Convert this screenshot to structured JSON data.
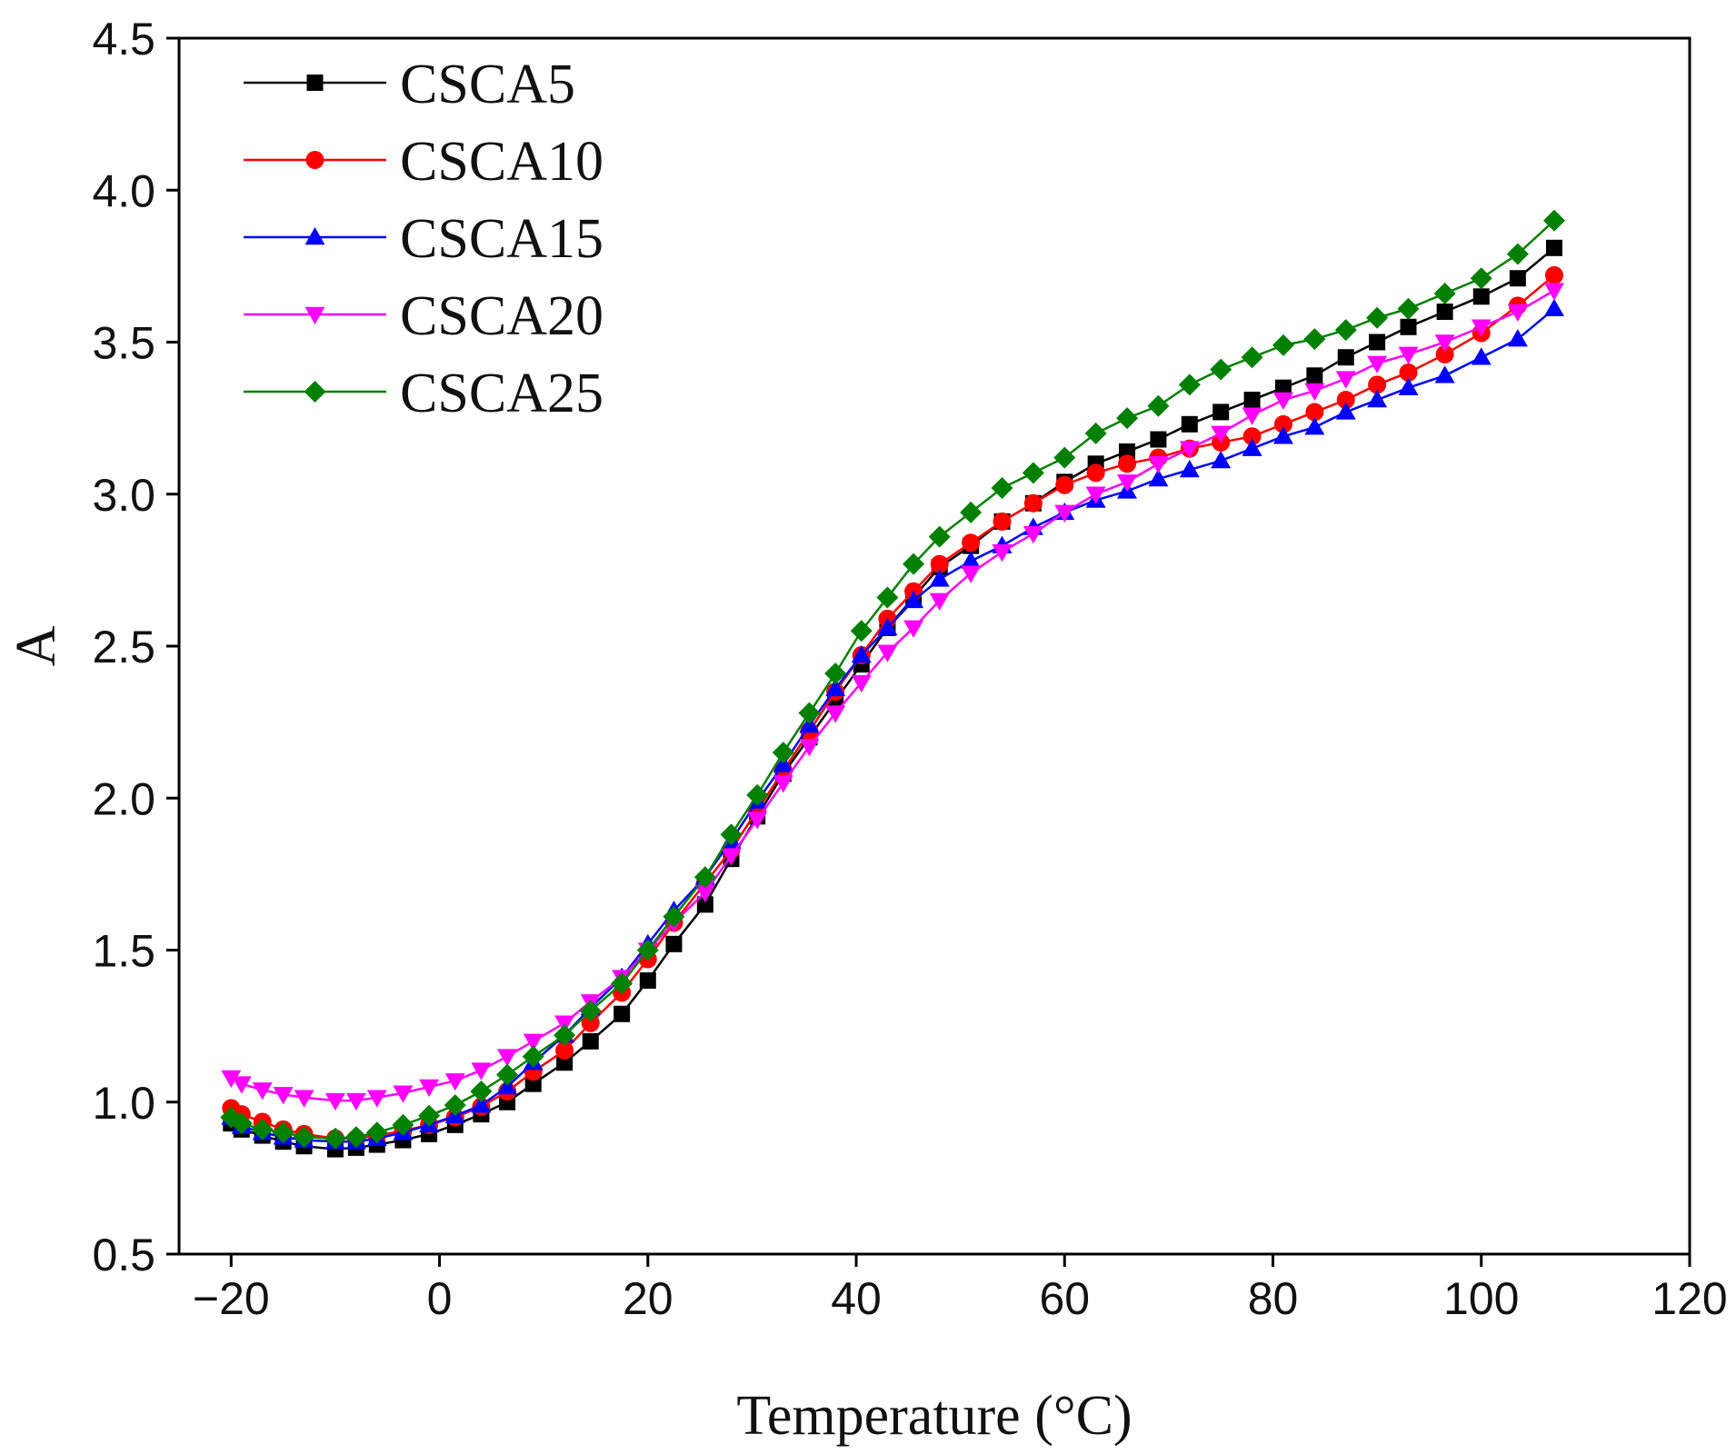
{
  "chart_data": {
    "type": "line",
    "title": "",
    "xlabel": "Temperature (°C)",
    "ylabel": "A",
    "xlim": [
      -25,
      120
    ],
    "ylim": [
      0.5,
      4.5
    ],
    "xticks": [
      -20,
      0,
      20,
      40,
      60,
      80,
      100,
      120
    ],
    "yticks": [
      0.5,
      1.0,
      1.5,
      2.0,
      2.5,
      3.0,
      3.5,
      4.0,
      4.5
    ],
    "xtick_labels": [
      "−20",
      "0",
      "20",
      "40",
      "60",
      "80",
      "100",
      "120"
    ],
    "ytick_labels": [
      "0.5",
      "1.0",
      "1.5",
      "2.0",
      "2.5",
      "3.0",
      "3.5",
      "4.0",
      "4.5"
    ],
    "legend_position": "top-left",
    "x": [
      -20,
      -19,
      -17,
      -15,
      -13,
      -10,
      -8,
      -6,
      -3.5,
      -1,
      1.5,
      4,
      6.5,
      9,
      12,
      14.5,
      17.5,
      20,
      22.5,
      25.5,
      28,
      30.5,
      33,
      35.5,
      38,
      40.5,
      43,
      45.5,
      48,
      51,
      54,
      57,
      60,
      63,
      66,
      69,
      72,
      75,
      78,
      81,
      84,
      87,
      90,
      93,
      96.5,
      100,
      103.5,
      107
    ],
    "series": [
      {
        "name": "CSCA5",
        "color": "#000000",
        "marker": "square",
        "values": [
          0.93,
          0.91,
          0.89,
          0.87,
          0.855,
          0.845,
          0.85,
          0.86,
          0.875,
          0.895,
          0.925,
          0.96,
          1.0,
          1.06,
          1.13,
          1.2,
          1.29,
          1.4,
          1.52,
          1.65,
          1.8,
          1.94,
          2.08,
          2.2,
          2.32,
          2.44,
          2.56,
          2.66,
          2.76,
          2.83,
          2.91,
          2.97,
          3.04,
          3.1,
          3.14,
          3.18,
          3.23,
          3.27,
          3.31,
          3.35,
          3.39,
          3.45,
          3.5,
          3.55,
          3.6,
          3.65,
          3.71,
          3.81
        ]
      },
      {
        "name": "CSCA10",
        "color": "#ff0000",
        "marker": "circle",
        "values": [
          0.98,
          0.96,
          0.935,
          0.91,
          0.895,
          0.88,
          0.88,
          0.89,
          0.905,
          0.925,
          0.95,
          0.985,
          1.035,
          1.1,
          1.17,
          1.26,
          1.36,
          1.47,
          1.59,
          1.72,
          1.83,
          1.96,
          2.09,
          2.22,
          2.35,
          2.47,
          2.59,
          2.68,
          2.77,
          2.84,
          2.91,
          2.97,
          3.03,
          3.07,
          3.1,
          3.12,
          3.15,
          3.17,
          3.19,
          3.23,
          3.27,
          3.31,
          3.36,
          3.4,
          3.46,
          3.53,
          3.62,
          3.72
        ]
      },
      {
        "name": "CSCA15",
        "color": "#0000ff",
        "marker": "triangle-up",
        "values": [
          0.95,
          0.92,
          0.9,
          0.885,
          0.875,
          0.87,
          0.87,
          0.88,
          0.9,
          0.925,
          0.955,
          0.99,
          1.05,
          1.13,
          1.22,
          1.31,
          1.41,
          1.52,
          1.63,
          1.74,
          1.86,
          1.99,
          2.11,
          2.24,
          2.36,
          2.47,
          2.56,
          2.65,
          2.72,
          2.78,
          2.83,
          2.89,
          2.94,
          2.98,
          3.01,
          3.05,
          3.08,
          3.11,
          3.15,
          3.19,
          3.22,
          3.27,
          3.31,
          3.35,
          3.39,
          3.45,
          3.51,
          3.61
        ]
      },
      {
        "name": "CSCA20",
        "color": "#ff00ff",
        "marker": "triangle-down",
        "values": [
          1.08,
          1.06,
          1.04,
          1.025,
          1.015,
          1.005,
          1.005,
          1.015,
          1.03,
          1.05,
          1.07,
          1.105,
          1.15,
          1.2,
          1.26,
          1.33,
          1.41,
          1.5,
          1.59,
          1.69,
          1.81,
          1.93,
          2.05,
          2.17,
          2.28,
          2.38,
          2.48,
          2.56,
          2.65,
          2.74,
          2.81,
          2.87,
          2.94,
          3.0,
          3.04,
          3.1,
          3.15,
          3.2,
          3.26,
          3.31,
          3.34,
          3.38,
          3.43,
          3.46,
          3.5,
          3.55,
          3.6,
          3.67
        ]
      },
      {
        "name": "CSCA25",
        "color": "#008000",
        "marker": "diamond",
        "values": [
          0.95,
          0.93,
          0.91,
          0.9,
          0.885,
          0.88,
          0.885,
          0.9,
          0.925,
          0.955,
          0.99,
          1.035,
          1.09,
          1.15,
          1.22,
          1.3,
          1.39,
          1.5,
          1.61,
          1.74,
          1.88,
          2.01,
          2.15,
          2.28,
          2.41,
          2.55,
          2.66,
          2.77,
          2.86,
          2.94,
          3.02,
          3.07,
          3.12,
          3.2,
          3.25,
          3.29,
          3.36,
          3.41,
          3.45,
          3.49,
          3.51,
          3.54,
          3.58,
          3.61,
          3.66,
          3.71,
          3.79,
          3.9
        ]
      }
    ]
  }
}
